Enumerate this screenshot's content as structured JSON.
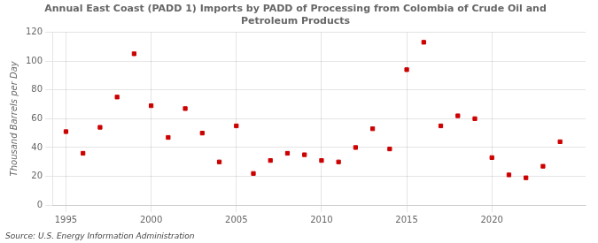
{
  "chart_data": {
    "type": "scatter",
    "title": "Annual East Coast (PADD 1) Imports by PADD of Processing from Colombia of Crude Oil and\nPetroleum Products",
    "ylabel": "Thousand Barrels per Day",
    "annotations": [
      "Source: U.S. Energy Information Administration"
    ],
    "x": [
      1995,
      1996,
      1997,
      1998,
      1999,
      2000,
      2001,
      2002,
      2003,
      2004,
      2005,
      2006,
      2007,
      2008,
      2009,
      2010,
      2011,
      2012,
      2013,
      2014,
      2015,
      2016,
      2017,
      2018,
      2019,
      2020,
      2021,
      2022,
      2023,
      2024
    ],
    "values": [
      51,
      36,
      54,
      75,
      105,
      69,
      47,
      67,
      50,
      30,
      55,
      22,
      31,
      36,
      35,
      31,
      30,
      40,
      53,
      39,
      94,
      113,
      55,
      62,
      60,
      33,
      21,
      19,
      27,
      44
    ],
    "color": "#cc0000",
    "marker": "square",
    "xlim": [
      1994.2,
      2025.5
    ],
    "xticks": [
      1995,
      2000,
      2005,
      2010,
      2015,
      2020
    ],
    "ylim": [
      0,
      120
    ],
    "yticks": [
      0,
      20,
      40,
      60,
      80,
      100,
      120
    ],
    "grid": true
  }
}
